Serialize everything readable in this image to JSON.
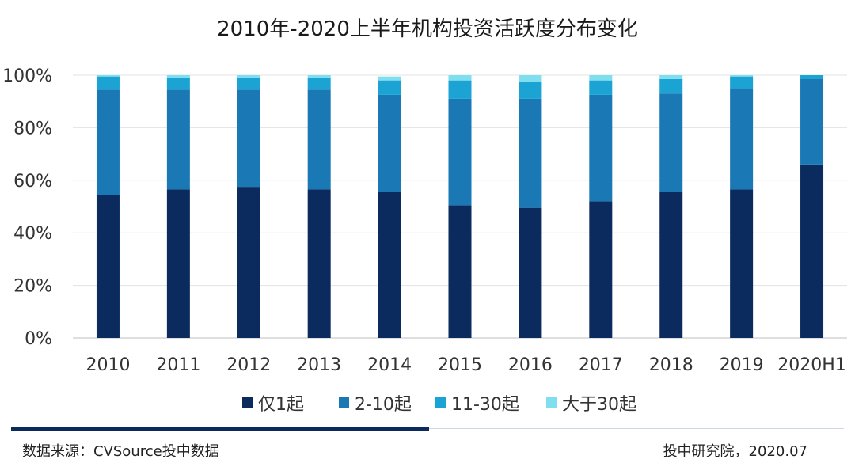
{
  "chart_data": {
    "type": "bar",
    "stacked": true,
    "title": "2010年-2020上半年机构投资活跃度分布变化",
    "categories": [
      "2010",
      "2011",
      "2012",
      "2013",
      "2014",
      "2015",
      "2016",
      "2017",
      "2018",
      "2019",
      "2020H1"
    ],
    "ylim": [
      0,
      100
    ],
    "yticks": [
      "0%",
      "20%",
      "40%",
      "60%",
      "80%",
      "100%"
    ],
    "series": [
      {
        "name": "仅1起",
        "color": "#0b2a5e",
        "values": [
          54.5,
          56.5,
          57.5,
          56.5,
          55.5,
          50.5,
          49.5,
          52,
          55.5,
          56.5,
          66
        ]
      },
      {
        "name": "2-10起",
        "color": "#1a78b4",
        "values": [
          40,
          38,
          37,
          38,
          37,
          40.5,
          41.5,
          40.5,
          37.5,
          38.5,
          32.5
        ]
      },
      {
        "name": "11-30起",
        "color": "#1aa3d3",
        "values": [
          5,
          4.5,
          4.5,
          4.5,
          5.5,
          7,
          6.5,
          5.5,
          5.5,
          4.5,
          1.5
        ]
      },
      {
        "name": "大于30起",
        "color": "#7fdfee",
        "values": [
          0.5,
          1,
          1,
          1,
          1.5,
          2,
          2.5,
          2,
          1.5,
          0.5,
          0
        ]
      }
    ],
    "legend_position": "bottom"
  },
  "footer": {
    "source": "数据来源：CVSource投中数据",
    "credit": "投中研究院，2020.07"
  }
}
